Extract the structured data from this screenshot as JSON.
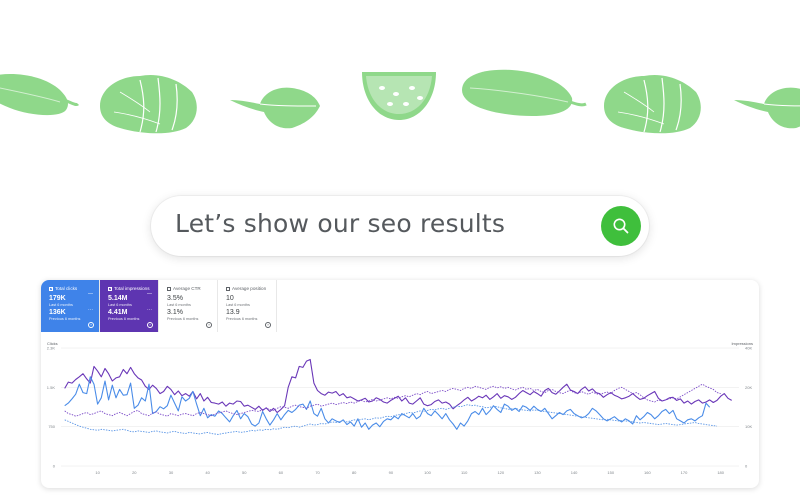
{
  "search": {
    "text": "Let’s show our seo results",
    "icon": "search-icon",
    "button_color": "#3fbf3c"
  },
  "decor": {
    "vegetable_color": "#8fd88a",
    "vegetables": [
      "zucchini-icon",
      "cabbage-icon",
      "spinach-leaf-icon",
      "melon-slice-icon",
      "zucchini-icon",
      "cabbage-icon",
      "spinach-leaf-icon"
    ]
  },
  "metrics": [
    {
      "title": "Total clicks",
      "value": "179K",
      "period": "Last 6 months",
      "value2": "136K",
      "period2": "Previous 6 months",
      "color": "#3f83e9"
    },
    {
      "title": "Total impressions",
      "value": "5.14M",
      "period": "Last 6 months",
      "value2": "4.41M",
      "period2": "Previous 6 months",
      "color": "#5e35b1"
    },
    {
      "title": "Average CTR",
      "value": "3.5%",
      "period": "Last 6 months",
      "value2": "3.1%",
      "period2": "Previous 6 months"
    },
    {
      "title": "Average position",
      "value": "10",
      "period": "Last 6 months",
      "value2": "13.9",
      "period2": "Previous 6 months"
    }
  ],
  "chart_data": {
    "type": "line",
    "ylabel_left": "Clicks",
    "ylabel_right": "Impressions",
    "left_ticks": [
      "2.3K",
      "1.5K",
      "750",
      "0"
    ],
    "right_ticks": [
      "40K",
      "20K",
      "10K",
      "0"
    ],
    "ylim_left": [
      0,
      2250
    ],
    "x_ticks": [
      "10",
      "20",
      "30",
      "40",
      "50",
      "60",
      "70",
      "80",
      "90",
      "100",
      "110",
      "120",
      "130",
      "140",
      "150",
      "160",
      "170",
      "180"
    ],
    "xlim": [
      0,
      185
    ],
    "grid": true,
    "series": [
      {
        "role": "impressions-current",
        "color": "#6a37b8",
        "dashed": false,
        "values": [
          1480,
          1600,
          1580,
          1650,
          1700,
          1760,
          1660,
          1580,
          1900,
          1810,
          1700,
          1860,
          1760,
          1620,
          1680,
          1700,
          1840,
          1760,
          1880,
          1760,
          1680,
          1640,
          1520,
          1460,
          1540,
          1480,
          1380,
          1420,
          1520,
          1460,
          1360,
          1430,
          1340,
          1380,
          1330,
          1420,
          1280,
          1380,
          1240,
          1310,
          1210,
          1200,
          1180,
          1220,
          1140,
          1200,
          1180,
          1240,
          1230,
          1140,
          1160,
          1120,
          1080,
          1140,
          1060,
          1110,
          1040,
          1100,
          1020,
          1080,
          1150,
          1500,
          1700,
          1680,
          1900,
          1880,
          2000,
          2030,
          1580,
          1440,
          1380,
          1350,
          1410,
          1390,
          1420,
          1340,
          1380,
          1300,
          1320,
          1280,
          1240,
          1260,
          1290,
          1220,
          1240,
          1300,
          1270,
          1220,
          1200,
          1250,
          1290,
          1330,
          1240,
          1300,
          1200,
          1180,
          1240,
          1300,
          1180,
          1150,
          1170,
          1230,
          1260,
          1200,
          1220,
          1180,
          1090,
          1150,
          1200,
          1260,
          1310,
          1240,
          1280,
          1330,
          1300,
          1350,
          1270,
          1320,
          1380,
          1290,
          1340,
          1320,
          1270,
          1310,
          1380,
          1440,
          1400,
          1360,
          1420,
          1380,
          1330,
          1440,
          1480,
          1400,
          1370,
          1430,
          1500,
          1560,
          1450,
          1420,
          1380,
          1460,
          1510,
          1430,
          1470,
          1400,
          1380,
          1310,
          1360,
          1400,
          1350,
          1320,
          1280,
          1300,
          1330,
          1380,
          1320,
          1270,
          1290,
          1340,
          1380,
          1420,
          1290,
          1240,
          1260,
          1300,
          1310,
          1250,
          1280,
          1200,
          1240,
          1180,
          1230,
          1260,
          1200,
          1220,
          1260,
          1210,
          1250,
          1330,
          1380,
          1290,
          1250
        ]
      },
      {
        "role": "clicks-current",
        "color": "#4a8ce8",
        "dashed": false,
        "values": [
          1150,
          1200,
          1280,
          1370,
          1560,
          1400,
          1380,
          1700,
          1560,
          1180,
          1300,
          1620,
          1260,
          1540,
          1300,
          1460,
          1350,
          1360,
          1580,
          1100,
          1160,
          1300,
          1240,
          1560,
          1000,
          1040,
          1130,
          1090,
          1150,
          1350,
          1200,
          1050,
          1320,
          1240,
          1290,
          1420,
          1180,
          960,
          1100,
          920,
          980,
          950,
          1050,
          1000,
          920,
          840,
          960,
          1060,
          900,
          1000,
          940,
          800,
          760,
          820,
          1040,
          900,
          780,
          880,
          1000,
          880,
          980,
          1060,
          1020,
          1080,
          1160,
          1180,
          1080,
          1240,
          1000,
          950,
          1100,
          900,
          820,
          900,
          860,
          830,
          880,
          790,
          840,
          760,
          900,
          740,
          820,
          700,
          780,
          820,
          750,
          850,
          900,
          880,
          950,
          900,
          1000,
          960,
          920,
          1000,
          900,
          950,
          1100,
          1000,
          960,
          1050,
          980,
          900,
          1000,
          880,
          800,
          700,
          820,
          760,
          860,
          1000,
          1040,
          980,
          1100,
          980,
          1050,
          1150,
          1080,
          1020,
          1180,
          1140,
          1060,
          1100,
          1040,
          1150,
          1120,
          1060,
          1140,
          1080,
          1040,
          1100,
          1000,
          900,
          960,
          1020,
          980,
          1050,
          1080,
          1000,
          960,
          920,
          940,
          1000,
          1100,
          1050,
          980,
          900,
          860,
          900,
          940,
          880,
          840,
          900,
          860,
          800,
          960,
          880,
          940,
          1020,
          980,
          900,
          960,
          1040,
          1080,
          1000,
          1060,
          900,
          860,
          820,
          880,
          900,
          860,
          920,
          960,
          1200,
          1120
        ]
      },
      {
        "role": "impressions-previous",
        "color": "#7b4bc8",
        "dashed": true,
        "values": [
          1050,
          1000,
          980,
          950,
          970,
          1000,
          1020,
          980,
          1000,
          1030,
          1050,
          1000,
          980,
          960,
          1000,
          1020,
          990,
          960,
          1000,
          1040,
          1060,
          1000,
          980,
          960,
          1010,
          1030,
          990,
          970,
          950,
          1000,
          980,
          960,
          990,
          1000,
          980,
          960,
          1000,
          1020,
          1000,
          980,
          960,
          990,
          1010,
          1030,
          1050,
          1020,
          1000,
          980,
          1000,
          1020,
          1040,
          1060,
          1050,
          1040,
          1080,
          1100,
          1080,
          1060,
          1100,
          1130,
          1120,
          1100,
          1140,
          1160,
          1130,
          1120,
          1100,
          1140,
          1160,
          1180,
          1140,
          1160,
          1180,
          1200,
          1170,
          1190,
          1210,
          1190,
          1220,
          1200,
          1230,
          1250,
          1220,
          1240,
          1270,
          1240,
          1260,
          1280,
          1300,
          1280,
          1310,
          1290,
          1320,
          1340,
          1320,
          1350,
          1380,
          1360,
          1400,
          1420,
          1380,
          1400,
          1420,
          1440,
          1420,
          1460,
          1480,
          1460,
          1440,
          1480,
          1500,
          1480,
          1520,
          1500,
          1480,
          1460,
          1500,
          1520,
          1490,
          1510,
          1480,
          1500,
          1470,
          1450,
          1480,
          1500,
          1460,
          1480,
          1440,
          1460,
          1420,
          1400,
          1440,
          1460,
          1420,
          1400,
          1380,
          1420,
          1440,
          1400,
          1380,
          1420,
          1390,
          1370,
          1410,
          1380,
          1360,
          1390,
          1410,
          1380,
          1440,
          1480,
          1500,
          1460,
          1420,
          1380,
          1400,
          1360,
          1300,
          1260,
          1240,
          1220,
          1260,
          1240,
          1260,
          1280,
          1300,
          1280,
          1320,
          1360,
          1400,
          1440,
          1480,
          1520,
          1560,
          1520,
          1490,
          1460,
          1400,
          1380
        ]
      },
      {
        "role": "clicks-previous",
        "color": "#5b96e6",
        "dashed": true,
        "values": [
          880,
          850,
          820,
          790,
          760,
          740,
          720,
          700,
          690,
          680,
          700,
          690,
          680,
          670,
          680,
          690,
          700,
          680,
          660,
          650,
          670,
          660,
          650,
          640,
          660,
          670,
          650,
          640,
          630,
          650,
          660,
          640,
          630,
          620,
          640,
          630,
          620,
          610,
          630,
          640,
          620,
          610,
          600,
          620,
          630,
          640,
          650,
          660,
          640,
          650,
          660,
          680,
          670,
          690,
          680,
          700,
          690,
          710,
          700,
          720,
          740,
          730,
          750,
          760,
          740,
          760,
          780,
          800,
          780,
          790,
          810,
          800,
          820,
          840,
          830,
          850,
          860,
          840,
          860,
          880,
          870,
          890,
          900,
          880,
          900,
          920,
          910,
          930,
          950,
          940,
          960,
          980,
          970,
          1000,
          1020,
          1010,
          1030,
          1050,
          1040,
          1060,
          1080,
          1070,
          1090,
          1100,
          1080,
          1100,
          1120,
          1140,
          1130,
          1150,
          1170,
          1150,
          1160,
          1140,
          1130,
          1110,
          1120,
          1140,
          1130,
          1110,
          1100,
          1080,
          1090,
          1100,
          1080,
          1070,
          1060,
          1050,
          1070,
          1060,
          1050,
          1040,
          1030,
          1020,
          1010,
          1000,
          990,
          980,
          970,
          960,
          950,
          940,
          930,
          920,
          910,
          900,
          890,
          880,
          890,
          880,
          870,
          860,
          870,
          860,
          850,
          840,
          830,
          820,
          830,
          820,
          810,
          800,
          790,
          800,
          810,
          800,
          790,
          780,
          790,
          800,
          810,
          820,
          830,
          810,
          800,
          790,
          780,
          770,
          760
        ]
      }
    ]
  }
}
